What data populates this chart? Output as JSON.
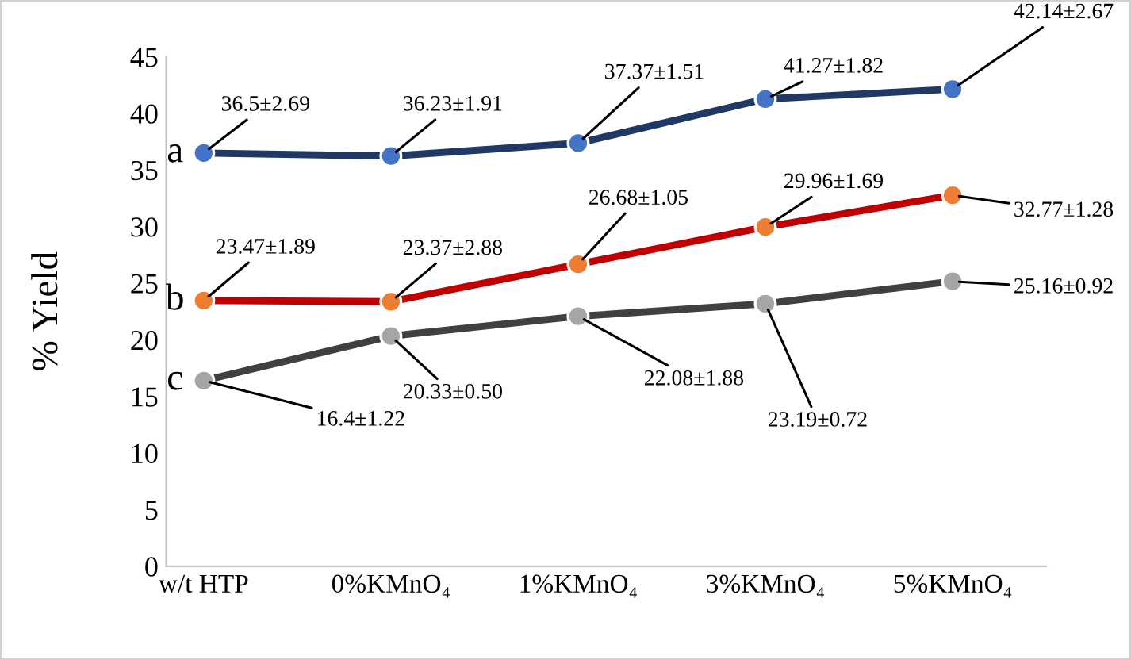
{
  "chart_data": {
    "type": "line",
    "ylabel": "% Yield",
    "categories": [
      "w/t HTP",
      "0%KMnO₄",
      "1%KMnO₄",
      "3%KMnO₄",
      "5%KMnO₄"
    ],
    "series": [
      {
        "name": "a",
        "color": "#203864",
        "colors": [
          "#4472c4",
          "#4472c4",
          "#4472c4",
          "#4472c4",
          "#4472c4"
        ],
        "values": [
          36.5,
          36.23,
          37.37,
          41.27,
          42.14
        ],
        "value_labels": [
          "36.5±2.69",
          "36.23±1.91",
          "37.37±1.51",
          "41.27±1.82",
          "42.14±2.67"
        ]
      },
      {
        "name": "b",
        "color": "#c00000",
        "colors": [
          "#ed7d31",
          "#ed7d31",
          "#ed7d31",
          "#ed7d31",
          "#ed7d31"
        ],
        "values": [
          23.47,
          23.37,
          26.68,
          29.96,
          32.77
        ],
        "value_labels": [
          "23.47±1.89",
          "23.37±2.88",
          "26.68±1.05",
          "29.96±1.69",
          "32.77±1.28"
        ]
      },
      {
        "name": "c",
        "color": "#404040",
        "colors": [
          "#a5a5a5",
          "#a5a5a5",
          "#a5a5a5",
          "#a5a5a5",
          "#a5a5a5"
        ],
        "values": [
          16.4,
          20.33,
          22.08,
          23.19,
          25.16
        ],
        "value_labels": [
          "16.4±1.22",
          "20.33±0.50",
          "22.08±1.88",
          "23.19±0.72",
          "25.16±0.92"
        ]
      }
    ],
    "ylim": [
      0,
      45
    ],
    "yticks": [
      0,
      5,
      10,
      15,
      20,
      25,
      30,
      35,
      40,
      45
    ],
    "grid": false,
    "legend": false,
    "marker": "circle",
    "line_style": "solid"
  }
}
